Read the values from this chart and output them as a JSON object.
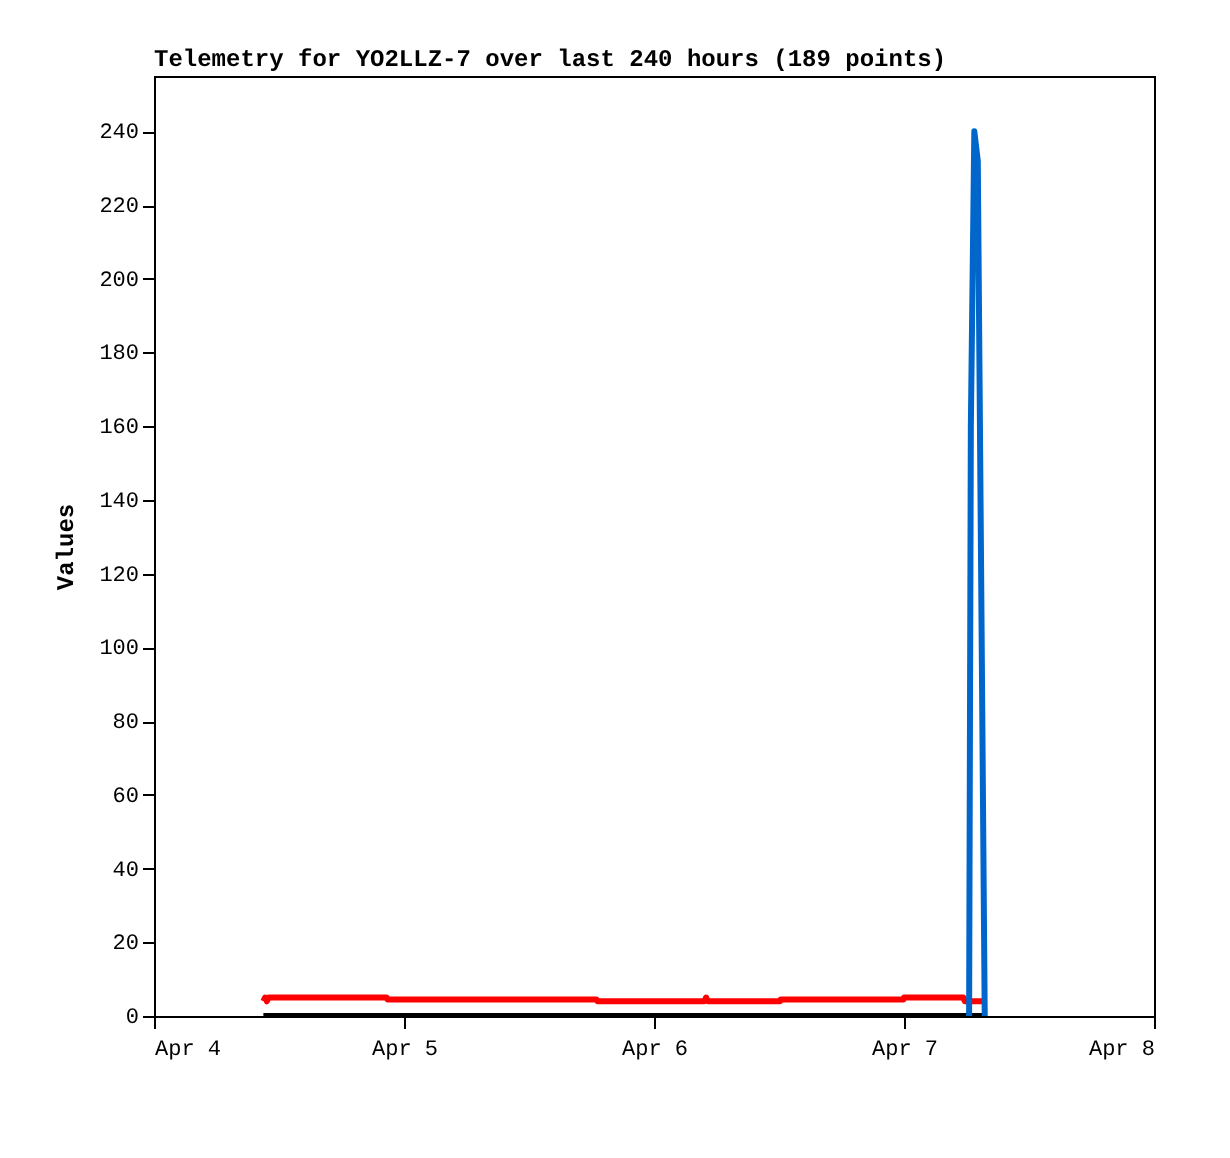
{
  "chart_data": {
    "type": "line",
    "title": "Telemetry for YO2LLZ-7 over last 240 hours (189 points)",
    "ylabel": "Values",
    "xlim": [
      "--04-04",
      "--04-08"
    ],
    "xticks": [
      {
        "value": "--04-04",
        "label": "Apr 4"
      },
      {
        "value": "--04-05",
        "label": "Apr 5"
      },
      {
        "value": "--04-06",
        "label": "Apr 6"
      },
      {
        "value": "--04-07",
        "label": "Apr 7"
      },
      {
        "value": "--04-08",
        "label": "Apr 8"
      }
    ],
    "ylim": [
      0,
      255
    ],
    "yticks": [
      0,
      20,
      40,
      60,
      80,
      100,
      120,
      140,
      160,
      180,
      200,
      220,
      240
    ],
    "grid": false,
    "legend": false,
    "marker": "none",
    "line_style": "solid",
    "series": [
      {
        "color": "#000000",
        "x": [
          "--04-04T10:30",
          "--04-07T07:45"
        ],
        "values": [
          0,
          0
        ]
      },
      {
        "color": "#ff0000",
        "x": [
          "--04-04T10:30",
          "--04-04T10:40",
          "--04-04T10:50",
          "--04-04T11:00",
          "--04-04T22:20",
          "--04-04T22:25",
          "--04-05T18:29",
          "--04-05T18:35",
          "--04-06T04:50",
          "--04-06T05:00",
          "--04-06T05:10",
          "--04-06T12:06",
          "--04-06T12:10",
          "--04-06T23:57",
          "--04-07T00:00",
          "--04-07T05:42",
          "--04-07T05:50",
          "--04-07T07:41"
        ],
        "values": [
          4,
          5,
          4,
          5,
          5,
          4.5,
          4.5,
          4,
          4,
          5,
          4,
          4,
          4.5,
          4.5,
          5,
          5,
          4,
          4
        ]
      },
      {
        "color": "#0066cc",
        "x": [
          "--04-07T06:15",
          "--04-07T06:20",
          "--04-07T06:25",
          "--04-07T06:45",
          "--04-07T07:05",
          "--04-07T07:45"
        ],
        "values": [
          0,
          80,
          160,
          240,
          232,
          0
        ]
      }
    ]
  }
}
